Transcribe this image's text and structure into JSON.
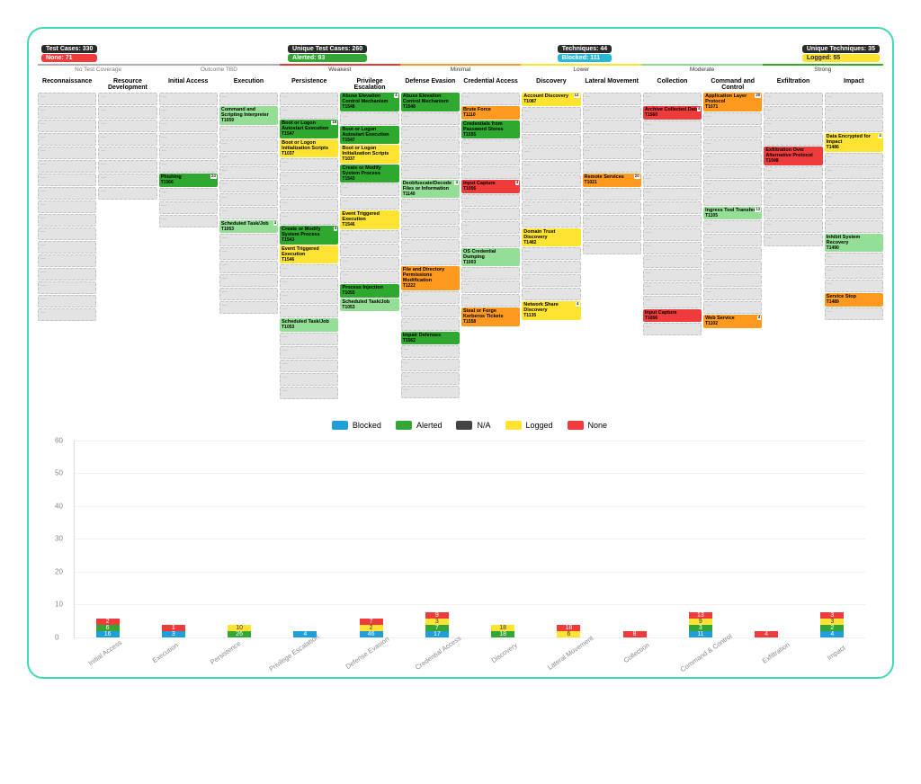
{
  "pills": {
    "left": [
      {
        "cls": "dark",
        "text": "Test Cases: 330"
      },
      {
        "cls": "red",
        "text": "None: 71"
      }
    ],
    "midL": [
      {
        "cls": "dark",
        "text": "Unique Test Cases: 260"
      },
      {
        "cls": "green",
        "text": "Alerted: 93"
      }
    ],
    "midR": [
      {
        "cls": "dark",
        "text": "Techniques: 44"
      },
      {
        "cls": "cyan",
        "text": "Blocked: 111"
      }
    ],
    "right": [
      {
        "cls": "dark",
        "text": "Unique Techniques: 35"
      },
      {
        "cls": "yellow",
        "text": "Logged: 55"
      }
    ]
  },
  "scale": [
    {
      "cls": "none",
      "label": "No Test Coverage"
    },
    {
      "cls": "tbd",
      "label": "Outcome TBD"
    },
    {
      "cls": "weak",
      "label": "Weakest"
    },
    {
      "cls": "min",
      "label": "Minimal"
    },
    {
      "cls": "low",
      "label": "Lower"
    },
    {
      "cls": "mod",
      "label": "Moderate"
    },
    {
      "cls": "strong",
      "label": "Strong"
    }
  ],
  "columns": [
    "Reconnaissance",
    "Resource Development",
    "Initial Access",
    "Execution",
    "Persistence",
    "Privilege Escalation",
    "Defense Evasion",
    "Credential Access",
    "Discovery",
    "Lateral Movement",
    "Collection",
    "Command and Control",
    "Exfiltration",
    "Impact"
  ],
  "matrix": [
    [
      {
        "s": "grey"
      },
      {
        "s": "grey"
      },
      {
        "s": "grey"
      },
      {
        "s": "grey"
      },
      {
        "s": "grey"
      },
      {
        "s": "grey"
      },
      {
        "s": "grey"
      },
      {
        "s": "grey"
      },
      {
        "s": "grey"
      },
      {
        "s": "grey"
      },
      {
        "s": "grey"
      },
      {
        "s": "grey"
      },
      {
        "s": "grey"
      },
      {
        "s": "grey"
      },
      {
        "s": "grey"
      },
      {
        "s": "grey"
      },
      {
        "s": "grey"
      }
    ],
    [
      {
        "s": "grey"
      },
      {
        "s": "grey"
      },
      {
        "s": "grey"
      },
      {
        "s": "grey"
      },
      {
        "s": "grey"
      },
      {
        "s": "grey"
      },
      {
        "s": "grey"
      },
      {
        "s": "grey"
      }
    ],
    [
      {
        "s": "grey"
      },
      {
        "s": "grey"
      },
      {
        "s": "grey"
      },
      {
        "s": "grey"
      },
      {
        "s": "grey"
      },
      {
        "s": "grey"
      },
      {
        "s": "green",
        "t": "Phishing",
        "c": "T1566",
        "b": "24"
      },
      {
        "s": "grey"
      },
      {
        "s": "grey"
      },
      {
        "s": "grey"
      }
    ],
    [
      {
        "s": "grey"
      },
      {
        "s": "lgreen",
        "t": "Command and Scripting Interpreter",
        "c": "T1059"
      },
      {
        "s": "grey"
      },
      {
        "s": "grey"
      },
      {
        "s": "grey"
      },
      {
        "s": "grey"
      },
      {
        "s": "grey"
      },
      {
        "s": "grey"
      },
      {
        "s": "grey"
      },
      {
        "s": "lgreen",
        "t": "Scheduled Task/Job",
        "c": "T1053",
        "b": "4"
      },
      {
        "s": "grey"
      },
      {
        "s": "grey"
      },
      {
        "s": "grey"
      },
      {
        "s": "grey"
      },
      {
        "s": "grey"
      },
      {
        "s": "grey"
      }
    ],
    [
      {
        "s": "grey"
      },
      {
        "s": "grey"
      },
      {
        "s": "green",
        "t": "Boot or Logon Autostart Execution",
        "c": "T1547",
        "b": "16"
      },
      {
        "s": "yellow",
        "t": "Boot or Logon Initialization Scripts",
        "c": "T1037"
      },
      {
        "s": "grey"
      },
      {
        "s": "grey"
      },
      {
        "s": "grey"
      },
      {
        "s": "grey"
      },
      {
        "s": "grey"
      },
      {
        "s": "green",
        "t": "Create or Modify System Process",
        "c": "T1543",
        "b": "4"
      },
      {
        "s": "yellow",
        "t": "Event Triggered Execution",
        "c": "T1546"
      },
      {
        "s": "grey"
      },
      {
        "s": "grey"
      },
      {
        "s": "grey"
      },
      {
        "s": "grey"
      },
      {
        "s": "lgreen",
        "t": "Scheduled Task/Job",
        "c": "T1053"
      },
      {
        "s": "grey"
      },
      {
        "s": "grey"
      },
      {
        "s": "grey"
      },
      {
        "s": "grey"
      },
      {
        "s": "grey"
      }
    ],
    [
      {
        "s": "green",
        "t": "Abuse Elevation Control Mechanism",
        "c": "T1548",
        "b": "4"
      },
      {
        "s": "grey"
      },
      {
        "s": "green",
        "t": "Boot or Logon Autostart Execution",
        "c": "T1547"
      },
      {
        "s": "yellow",
        "t": "Boot or Logon Initialization Scripts",
        "c": "T1037"
      },
      {
        "s": "green",
        "t": "Create or Modify System Process",
        "c": "T1543"
      },
      {
        "s": "grey"
      },
      {
        "s": "grey"
      },
      {
        "s": "yellow",
        "t": "Event Triggered Execution",
        "c": "T1546"
      },
      {
        "s": "grey"
      },
      {
        "s": "grey"
      },
      {
        "s": "grey"
      },
      {
        "s": "grey"
      },
      {
        "s": "green",
        "t": "Process Injection",
        "c": "T1055"
      },
      {
        "s": "lgreen",
        "t": "Scheduled Task/Job",
        "c": "T1053"
      }
    ],
    [
      {
        "s": "green",
        "t": "Abuse Elevation Control Mechanism",
        "c": "T1548"
      },
      {
        "s": "grey"
      },
      {
        "s": "grey"
      },
      {
        "s": "grey"
      },
      {
        "s": "grey"
      },
      {
        "s": "grey"
      },
      {
        "s": "lgreen",
        "t": "Deobfuscate/Decode Files or Information",
        "c": "T1140",
        "b": "4"
      },
      {
        "s": "grey"
      },
      {
        "s": "grey"
      },
      {
        "s": "grey"
      },
      {
        "s": "grey"
      },
      {
        "s": "grey"
      },
      {
        "s": "orange",
        "t": "File and Directory Permissions Modification",
        "c": "T1222"
      },
      {
        "s": "grey"
      },
      {
        "s": "grey"
      },
      {
        "s": "grey"
      },
      {
        "s": "green",
        "t": "Impair Defenses",
        "c": "T1562"
      },
      {
        "s": "grey"
      },
      {
        "s": "grey"
      },
      {
        "s": "grey"
      },
      {
        "s": "grey"
      }
    ],
    [
      {
        "s": "grey"
      },
      {
        "s": "orange",
        "t": "Brute Force",
        "c": "T1110"
      },
      {
        "s": "green",
        "t": "Credentials from Password Stores",
        "c": "T1555"
      },
      {
        "s": "grey"
      },
      {
        "s": "grey"
      },
      {
        "s": "grey"
      },
      {
        "s": "red",
        "t": "Input Capture",
        "c": "T1056",
        "b": "4"
      },
      {
        "s": "grey"
      },
      {
        "s": "grey"
      },
      {
        "s": "grey"
      },
      {
        "s": "grey"
      },
      {
        "s": "lgreen",
        "t": "OS Credential Dumping",
        "c": "T1003"
      },
      {
        "s": "grey"
      },
      {
        "s": "grey"
      },
      {
        "s": "grey"
      },
      {
        "s": "orange",
        "t": "Steal or Forge Kerberos Tickets",
        "c": "T1558"
      }
    ],
    [
      {
        "s": "yellow",
        "t": "Account Discovery",
        "c": "T1087",
        "b": "12"
      },
      {
        "s": "grey"
      },
      {
        "s": "grey"
      },
      {
        "s": "grey"
      },
      {
        "s": "grey"
      },
      {
        "s": "grey"
      },
      {
        "s": "grey"
      },
      {
        "s": "grey"
      },
      {
        "s": "grey"
      },
      {
        "s": "grey"
      },
      {
        "s": "yellow",
        "t": "Domain Trust Discovery",
        "c": "T1482"
      },
      {
        "s": "grey"
      },
      {
        "s": "grey"
      },
      {
        "s": "grey"
      },
      {
        "s": "grey"
      },
      {
        "s": "yellow",
        "t": "Network Share Discovery",
        "c": "T1135",
        "b": "4"
      }
    ],
    [
      {
        "s": "grey"
      },
      {
        "s": "grey"
      },
      {
        "s": "grey"
      },
      {
        "s": "grey"
      },
      {
        "s": "grey"
      },
      {
        "s": "grey"
      },
      {
        "s": "orange",
        "t": "Remote Services",
        "c": "T1021",
        "b": "20"
      },
      {
        "s": "grey"
      },
      {
        "s": "grey"
      },
      {
        "s": "grey"
      },
      {
        "s": "grey"
      },
      {
        "s": "grey"
      }
    ],
    [
      {
        "s": "grey"
      },
      {
        "s": "red",
        "t": "Archive Collected Data",
        "c": "T1560",
        "b": "4"
      },
      {
        "s": "grey"
      },
      {
        "s": "grey"
      },
      {
        "s": "grey"
      },
      {
        "s": "grey"
      },
      {
        "s": "grey"
      },
      {
        "s": "grey"
      },
      {
        "s": "grey"
      },
      {
        "s": "grey"
      },
      {
        "s": "grey"
      },
      {
        "s": "grey"
      },
      {
        "s": "grey"
      },
      {
        "s": "grey"
      },
      {
        "s": "grey"
      },
      {
        "s": "grey"
      },
      {
        "s": "red",
        "t": "Input Capture",
        "c": "T1056"
      },
      {
        "s": "grey"
      }
    ],
    [
      {
        "s": "orange",
        "t": "Application Layer Protocol",
        "c": "T1071",
        "b": "20"
      },
      {
        "s": "grey"
      },
      {
        "s": "grey"
      },
      {
        "s": "grey"
      },
      {
        "s": "grey"
      },
      {
        "s": "grey"
      },
      {
        "s": "grey"
      },
      {
        "s": "grey"
      },
      {
        "s": "lgreen",
        "t": "Ingress Tool Transfer",
        "c": "T1105",
        "b": "12"
      },
      {
        "s": "grey"
      },
      {
        "s": "grey"
      },
      {
        "s": "grey"
      },
      {
        "s": "grey"
      },
      {
        "s": "grey"
      },
      {
        "s": "grey"
      },
      {
        "s": "grey"
      },
      {
        "s": "orange",
        "t": "Web Service",
        "c": "T1102",
        "b": "4"
      }
    ],
    [
      {
        "s": "grey"
      },
      {
        "s": "grey"
      },
      {
        "s": "grey"
      },
      {
        "s": "grey"
      },
      {
        "s": "red",
        "t": "Exfiltration Over Alternative Protocol",
        "c": "T1048"
      },
      {
        "s": "grey"
      },
      {
        "s": "grey"
      },
      {
        "s": "grey"
      },
      {
        "s": "grey"
      },
      {
        "s": "grey"
      },
      {
        "s": "grey"
      }
    ],
    [
      {
        "s": "grey"
      },
      {
        "s": "grey"
      },
      {
        "s": "grey"
      },
      {
        "s": "yellow",
        "t": "Data Encrypted for Impact",
        "c": "T1486",
        "b": "4"
      },
      {
        "s": "grey"
      },
      {
        "s": "grey"
      },
      {
        "s": "grey"
      },
      {
        "s": "grey"
      },
      {
        "s": "grey"
      },
      {
        "s": "grey"
      },
      {
        "s": "lgreen",
        "t": "Inhibit System Recovery",
        "c": "T1490"
      },
      {
        "s": "grey"
      },
      {
        "s": "grey"
      },
      {
        "s": "grey"
      },
      {
        "s": "orange",
        "t": "Service Stop",
        "c": "T1489"
      },
      {
        "s": "grey"
      }
    ]
  ],
  "chart": {
    "ymax": 60,
    "ystep": 10,
    "legend": [
      {
        "key": "blocked",
        "label": "Blocked"
      },
      {
        "key": "alerted",
        "label": "Alerted"
      },
      {
        "key": "na",
        "label": "N/A"
      },
      {
        "key": "logged",
        "label": "Logged"
      },
      {
        "key": "none",
        "label": "None"
      }
    ],
    "series": [
      {
        "label": "Initial Access",
        "blocked": 16,
        "alerted": 6,
        "logged": 0,
        "none": 2
      },
      {
        "label": "Execution",
        "blocked": 3,
        "alerted": 0,
        "logged": 0,
        "none": 1
      },
      {
        "label": "Persistence",
        "blocked": 0,
        "alerted": 26,
        "logged": 10,
        "none": 0
      },
      {
        "label": "Privilege Escalation",
        "blocked": 4,
        "alerted": 0,
        "logged": 0,
        "none": 0
      },
      {
        "label": "Defense Evasion",
        "blocked": 46,
        "alerted": 0,
        "logged": 2,
        "none": 7
      },
      {
        "label": "Credential Access",
        "blocked": 17,
        "alerted": 7,
        "logged": 3,
        "none": 9
      },
      {
        "label": "Discovery",
        "blocked": 0,
        "alerted": 18,
        "logged": 18,
        "none": 0
      },
      {
        "label": "Lateral Movement",
        "blocked": 0,
        "alerted": 0,
        "logged": 6,
        "none": 18
      },
      {
        "label": "Collection",
        "blocked": 0,
        "alerted": 0,
        "logged": 0,
        "none": 8
      },
      {
        "label": "Command & Control",
        "blocked": 11,
        "alerted": 3,
        "logged": 9,
        "none": 13
      },
      {
        "label": "Exfiltration",
        "blocked": 0,
        "alerted": 0,
        "logged": 0,
        "none": 4
      },
      {
        "label": "Impact",
        "blocked": 4,
        "alerted": 2,
        "logged": 3,
        "none": 3
      }
    ]
  }
}
